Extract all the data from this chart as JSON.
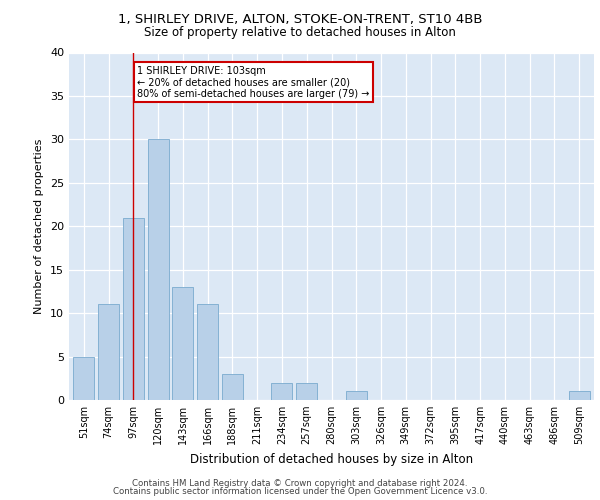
{
  "title1": "1, SHIRLEY DRIVE, ALTON, STOKE-ON-TRENT, ST10 4BB",
  "title2": "Size of property relative to detached houses in Alton",
  "xlabel": "Distribution of detached houses by size in Alton",
  "ylabel": "Number of detached properties",
  "categories": [
    "51sqm",
    "74sqm",
    "97sqm",
    "120sqm",
    "143sqm",
    "166sqm",
    "188sqm",
    "211sqm",
    "234sqm",
    "257sqm",
    "280sqm",
    "303sqm",
    "326sqm",
    "349sqm",
    "372sqm",
    "395sqm",
    "417sqm",
    "440sqm",
    "463sqm",
    "486sqm",
    "509sqm"
  ],
  "values": [
    5,
    11,
    21,
    30,
    13,
    11,
    3,
    0,
    2,
    2,
    0,
    1,
    0,
    0,
    0,
    0,
    0,
    0,
    0,
    0,
    1
  ],
  "bar_color": "#b8d0e8",
  "bar_edgecolor": "#7aaace",
  "vline_x": 2,
  "vline_color": "#cc0000",
  "annotation_lines": [
    "1 SHIRLEY DRIVE: 103sqm",
    "← 20% of detached houses are smaller (20)",
    "80% of semi-detached houses are larger (79) →"
  ],
  "annotation_box_color": "#cc0000",
  "ylim": [
    0,
    40
  ],
  "yticks": [
    0,
    5,
    10,
    15,
    20,
    25,
    30,
    35,
    40
  ],
  "plot_bg_color": "#dce8f5",
  "footer1": "Contains HM Land Registry data © Crown copyright and database right 2024.",
  "footer2": "Contains public sector information licensed under the Open Government Licence v3.0."
}
